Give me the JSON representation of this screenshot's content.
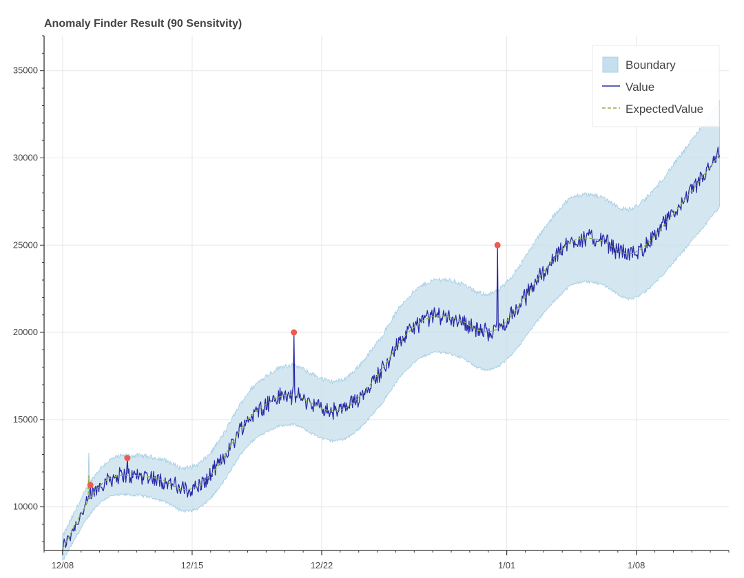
{
  "chart_data": {
    "type": "line",
    "title": "Anomaly Finder Result (90 Sensitvity)",
    "xlabel": "",
    "ylabel": "",
    "x_range": [
      "2017-12-07",
      "2018-01-13"
    ],
    "ylim": [
      7500,
      37000
    ],
    "x_ticks": [
      {
        "label": "12/08",
        "date": "2017-12-08"
      },
      {
        "label": "12/15",
        "date": "2017-12-15"
      },
      {
        "label": "12/22",
        "date": "2017-12-22"
      },
      {
        "label": "1/01",
        "date": "2018-01-01"
      },
      {
        "label": "1/08",
        "date": "2018-01-08"
      }
    ],
    "y_ticks": [
      10000,
      15000,
      20000,
      25000,
      30000,
      35000
    ],
    "grid": true,
    "legend_position": "top-right",
    "legend": [
      "Boundary",
      "Value",
      "ExpectedValue"
    ],
    "colors": {
      "boundary_fill": "#c6dfec",
      "boundary_edge": "#a9d0e4",
      "value": "#2a2aa8",
      "expected": "#8fb040",
      "anomaly": "#f0594f",
      "grid": "#e6e6e6",
      "axis": "#333333"
    },
    "expected_series": {
      "name": "ExpectedValue",
      "points": [
        [
          "2017-12-08 00:00",
          7600
        ],
        [
          "2017-12-09 12:00",
          10500
        ],
        [
          "2017-12-10 12:00",
          11600
        ],
        [
          "2017-12-12 00:00",
          11800
        ],
        [
          "2017-12-13 12:00",
          11500
        ],
        [
          "2017-12-14 12:00",
          11000
        ],
        [
          "2017-12-15 12:00",
          11300
        ],
        [
          "2017-12-16 12:00",
          12500
        ],
        [
          "2017-12-18 00:00",
          15000
        ],
        [
          "2017-12-19 12:00",
          16200
        ],
        [
          "2017-12-20 12:00",
          16400
        ],
        [
          "2017-12-21 12:00",
          15900
        ],
        [
          "2017-12-22 12:00",
          15500
        ],
        [
          "2017-12-23 12:00",
          15800
        ],
        [
          "2017-12-25 00:00",
          17500
        ],
        [
          "2017-12-26 12:00",
          19800
        ],
        [
          "2017-12-28 00:00",
          20900
        ],
        [
          "2017-12-29 12:00",
          20700
        ],
        [
          "2017-12-30 12:00",
          20100
        ],
        [
          "2017-12-31 12:00",
          20200
        ],
        [
          "2018-01-01 12:00",
          21300
        ],
        [
          "2018-01-03 00:00",
          23500
        ],
        [
          "2018-01-04 12:00",
          25200
        ],
        [
          "2018-01-06 00:00",
          25300
        ],
        [
          "2018-01-07 12:00",
          24500
        ],
        [
          "2018-01-08 12:00",
          25000
        ],
        [
          "2018-01-10 00:00",
          26800
        ],
        [
          "2018-01-11 12:00",
          28800
        ],
        [
          "2018-01-12 12:00",
          30200
        ]
      ]
    },
    "boundary_width": [
      [
        "2017-12-08 00:00",
        700
      ],
      [
        "2017-12-09 12:00",
        900
      ],
      [
        "2017-12-11 00:00",
        1100
      ],
      [
        "2017-12-14 00:00",
        1200
      ],
      [
        "2017-12-16 00:00",
        1300
      ],
      [
        "2017-12-18 00:00",
        1500
      ],
      [
        "2017-12-20 00:00",
        1700
      ],
      [
        "2017-12-23 00:00",
        1700
      ],
      [
        "2017-12-26 00:00",
        2000
      ],
      [
        "2017-12-29 00:00",
        2100
      ],
      [
        "2018-01-01 00:00",
        2200
      ],
      [
        "2018-01-04 00:00",
        2500
      ],
      [
        "2018-01-07 00:00",
        2500
      ],
      [
        "2018-01-10 00:00",
        2800
      ],
      [
        "2018-01-12 12:00",
        3000
      ]
    ],
    "value_noise": 450,
    "value_start": "2017-12-08 00:00",
    "value_end": "2018-01-12 12:00",
    "value_step_hours": 1,
    "anomalies": [
      {
        "x": "2017-12-09 12:00",
        "y": 11250
      },
      {
        "x": "2017-12-11 12:00",
        "y": 12800
      },
      {
        "x": "2017-12-20 12:00",
        "y": 20000
      },
      {
        "x": "2017-12-31 12:00",
        "y": 25000
      }
    ],
    "early_spike": {
      "x": "2017-12-09 10:00",
      "upper": 13100,
      "expected": 11800
    }
  }
}
